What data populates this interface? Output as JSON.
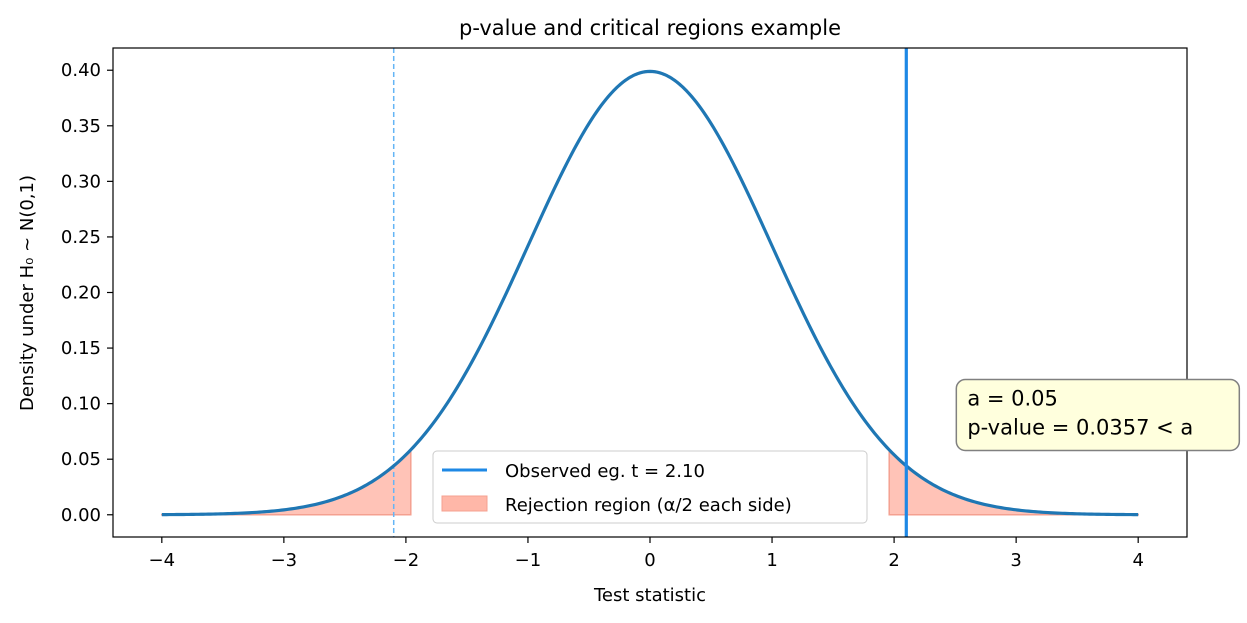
{
  "chart_data": {
    "type": "line",
    "title": "p-value and critical regions example",
    "xlabel": "Test statistic",
    "ylabel": "Density under H₀ ~ N(0,1)",
    "xlim": [
      -4.4,
      4.4
    ],
    "ylim": [
      -0.02,
      0.42
    ],
    "x_ticks": [
      -4,
      -3,
      -2,
      -1,
      0,
      1,
      2,
      3,
      4
    ],
    "x_tick_labels": [
      "−4",
      "−3",
      "−2",
      "−1",
      "0",
      "1",
      "2",
      "3",
      "4"
    ],
    "y_ticks": [
      0.0,
      0.05,
      0.1,
      0.15,
      0.2,
      0.25,
      0.3,
      0.35,
      0.4
    ],
    "y_tick_labels": [
      "0.00",
      "0.05",
      "0.10",
      "0.15",
      "0.20",
      "0.25",
      "0.30",
      "0.35",
      "0.40"
    ],
    "grid": false,
    "series": [
      {
        "kind": "line",
        "distribution": "standard normal density",
        "x_range": [
          -4,
          4
        ],
        "color": "#1f77b4"
      }
    ],
    "rejection_regions": [
      {
        "from": -4,
        "to": -1.96
      },
      {
        "from": 1.96,
        "to": 4
      }
    ],
    "rejection_color": "#ffaa99",
    "observed_line": {
      "x": 2.1,
      "color": "#1e88e5"
    },
    "mirror_line": {
      "x": -2.1,
      "color": "#64b5f6",
      "style": "dashed"
    },
    "legend": {
      "placement": "lower-center",
      "entries": [
        {
          "label": "Observed eg. t = 2.10",
          "kind": "line",
          "color": "#1e88e5"
        },
        {
          "label": "Rejection region (α/2 each side)",
          "kind": "patch",
          "color": "#ffaa99"
        }
      ]
    },
    "annotation": {
      "lines": [
        "a = 0.05",
        "p-value = 0.0357 < a"
      ],
      "x": 2.6,
      "y": 0.065,
      "bg_color": "#ffffdd",
      "border_color": "#808080"
    }
  }
}
